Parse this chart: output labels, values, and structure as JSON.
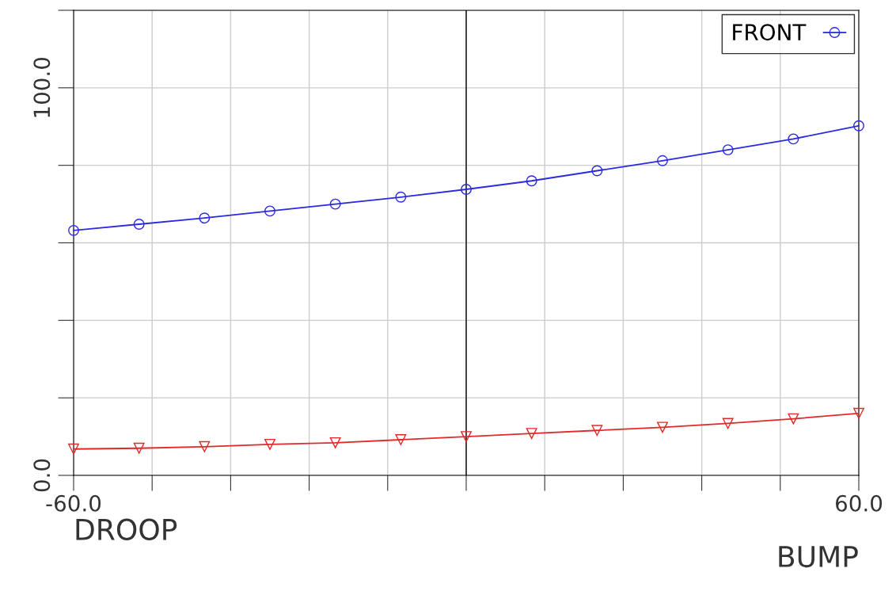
{
  "chart_data": {
    "type": "line",
    "xlabel": "DROOP",
    "annotations": [
      "BUMP"
    ],
    "x": [
      -60,
      -50,
      -40,
      -30,
      -20,
      -10,
      0,
      10,
      20,
      30,
      40,
      50,
      60
    ],
    "series": [
      {
        "name": "FRONT",
        "color": "#2a2ae0",
        "marker": "circle",
        "values": [
          63.2,
          64.8,
          66.4,
          68.2,
          70,
          71.8,
          73.8,
          76,
          78.6,
          81.2,
          84,
          86.8,
          90.2
        ]
      },
      {
        "color": "#e02a2a",
        "marker": "triangle",
        "values": [
          6.8,
          7,
          7.4,
          8,
          8.4,
          9.2,
          10,
          10.8,
          11.6,
          12.4,
          13.4,
          14.6,
          16
        ]
      }
    ],
    "xlim": [
      -60,
      60
    ],
    "ylim": [
      0,
      120
    ],
    "xticks": [
      {
        "value": -60,
        "label": "-60.0"
      },
      {
        "value": -48,
        "label": null
      },
      {
        "value": -36,
        "label": null
      },
      {
        "value": -24,
        "label": null
      },
      {
        "value": -12,
        "label": null
      },
      {
        "value": 0,
        "label": null
      },
      {
        "value": 12,
        "label": null
      },
      {
        "value": 24,
        "label": null
      },
      {
        "value": 36,
        "label": null
      },
      {
        "value": 48,
        "label": null
      },
      {
        "value": 60,
        "label": "60.0"
      }
    ],
    "yticks": [
      {
        "value": 0,
        "label": "0.0"
      },
      {
        "value": 20,
        "label": null
      },
      {
        "value": 40,
        "label": null
      },
      {
        "value": 60,
        "label": null
      },
      {
        "value": 80,
        "label": null
      },
      {
        "value": 100,
        "label": "100.0"
      },
      {
        "value": 120,
        "label": null
      }
    ],
    "ref_lines": [
      {
        "axis": "x",
        "value": 0,
        "color": "#000000"
      }
    ],
    "grid": true,
    "legend": "top right",
    "line_style": "solid"
  }
}
